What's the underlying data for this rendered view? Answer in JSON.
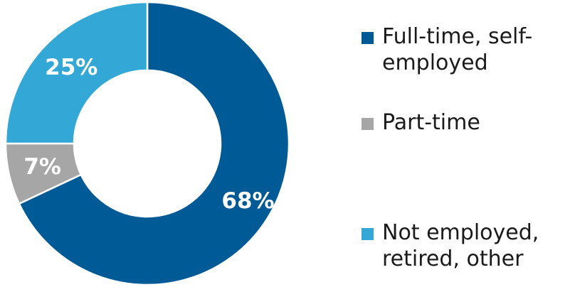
{
  "chart_data": {
    "type": "pie",
    "variant": "donut",
    "title": "",
    "start_angle_deg": 0,
    "direction": "clockwise",
    "slices": [
      {
        "label": "Full-time, self-\nemployed",
        "value": 68,
        "value_label": "68%",
        "color": "#005a96",
        "label_color": "#ffffff"
      },
      {
        "label": "Part-time",
        "value": 7,
        "value_label": "7%",
        "color": "#a6a6a6",
        "label_color": "#ffffff"
      },
      {
        "label": "Not employed,\nretired, other",
        "value": 25,
        "value_label": "25%",
        "color": "#33a8d6",
        "label_color": "#ffffff"
      }
    ],
    "legend": {
      "placement": "right"
    }
  }
}
